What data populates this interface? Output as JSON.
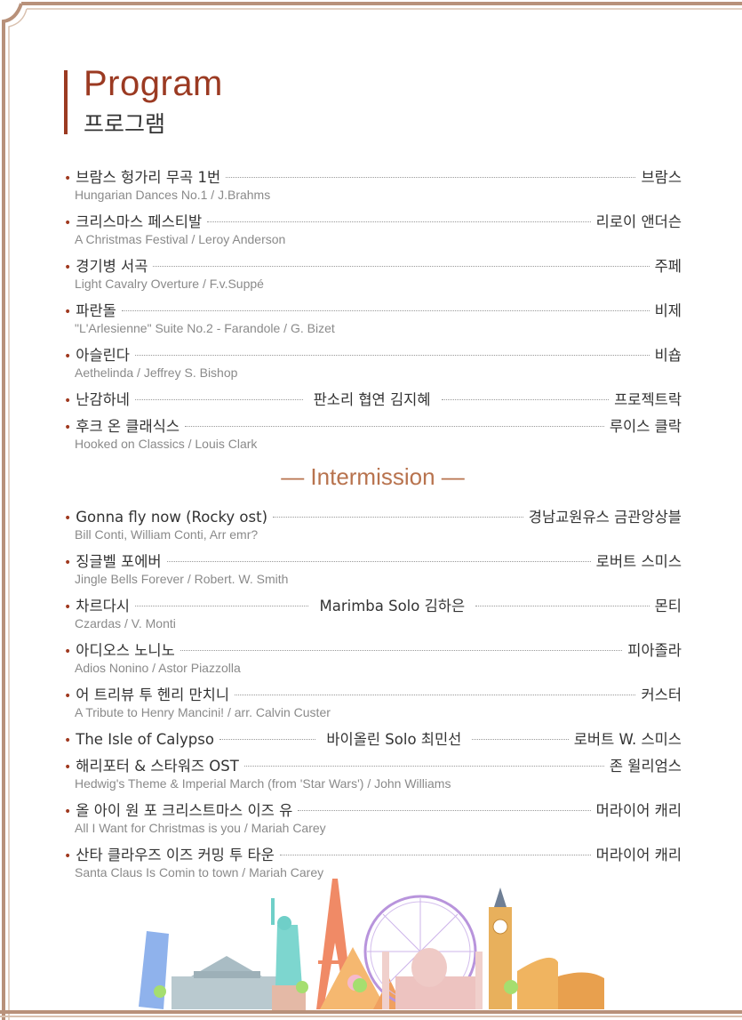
{
  "header": {
    "title_en": "Program",
    "title_ko": "프로그램"
  },
  "part1": [
    {
      "title": "브람스 헝가리 무곡 1번",
      "performer": "브람스",
      "subtitle": "Hungarian Dances No.1 / J.Brahms"
    },
    {
      "title": "크리스마스 페스티발",
      "performer": "리로이 앤더슨",
      "subtitle": "A Christmas Festival / Leroy Anderson"
    },
    {
      "title": "경기병 서곡",
      "performer": "주페",
      "subtitle": "Light Cavalry Overture / F.v.Suppé"
    },
    {
      "title": "파란돌",
      "performer": "비제",
      "subtitle": "\"L'Arlesienne\" Suite No.2 - Farandole / G. Bizet"
    },
    {
      "title": "아슬린다",
      "performer": "비숍",
      "subtitle": "Aethelinda / Jeffrey S. Bishop"
    },
    {
      "title": "난감하네",
      "middle": "판소리 협연 김지혜",
      "performer": "프로젝트락"
    },
    {
      "title": "후크 온 클래식스",
      "performer": "루이스 클락",
      "subtitle": "Hooked on Classics / Louis Clark"
    }
  ],
  "intermission": "— Intermission —",
  "part2": [
    {
      "title": "Gonna fly now (Rocky ost)",
      "performer": "경남교원유스 금관앙상블",
      "subtitle": "Bill Conti, William Conti, Arr emr?"
    },
    {
      "title": "징글벨 포에버",
      "performer": "로버트 스미스",
      "subtitle": "Jingle Bells Forever / Robert. W. Smith"
    },
    {
      "title": "차르다시",
      "middle": "Marimba Solo 김하은",
      "performer": "몬티",
      "subtitle": "Czardas / V. Monti"
    },
    {
      "title": "아디오스 노니노",
      "performer": "피아졸라",
      "subtitle": "Adios Nonino / Astor Piazzolla"
    },
    {
      "title": "어 트리뷰 투 헨리 만치니",
      "performer": "커스터",
      "subtitle": "A Tribute to Henry Mancini! / arr. Calvin Custer"
    },
    {
      "title": "The Isle of Calypso",
      "middle": "바이올린 Solo 최민선",
      "performer": "로버트 W. 스미스"
    },
    {
      "title": "해리포터 & 스타워즈 OST",
      "performer": "존 윌리엄스",
      "subtitle": "Hedwig's Theme & Imperial March (from 'Star Wars') / John Williams"
    },
    {
      "title": "올 아이 원 포 크리스트마스 이즈 유",
      "performer": "머라이어 캐리",
      "subtitle": "All I Want for Christmas is you / Mariah Carey"
    },
    {
      "title": "산타 클라우즈 이즈 커밍 투 타운",
      "performer": "머라이어 캐리",
      "subtitle": "Santa Claus Is Comin to town / Mariah Carey"
    }
  ],
  "colors": {
    "accent": "#9b3a22",
    "bullet": "#a0391f",
    "frame": "#b8917a",
    "intermission": "#b8734e",
    "subtitle": "#8a8a8a"
  },
  "illustration": [
    "leaning-tower-of-pisa",
    "parthenon",
    "statue-of-liberty",
    "eiffel-tower",
    "pyramid",
    "ferris-wheel",
    "taj-mahal",
    "big-ben",
    "colosseum"
  ]
}
